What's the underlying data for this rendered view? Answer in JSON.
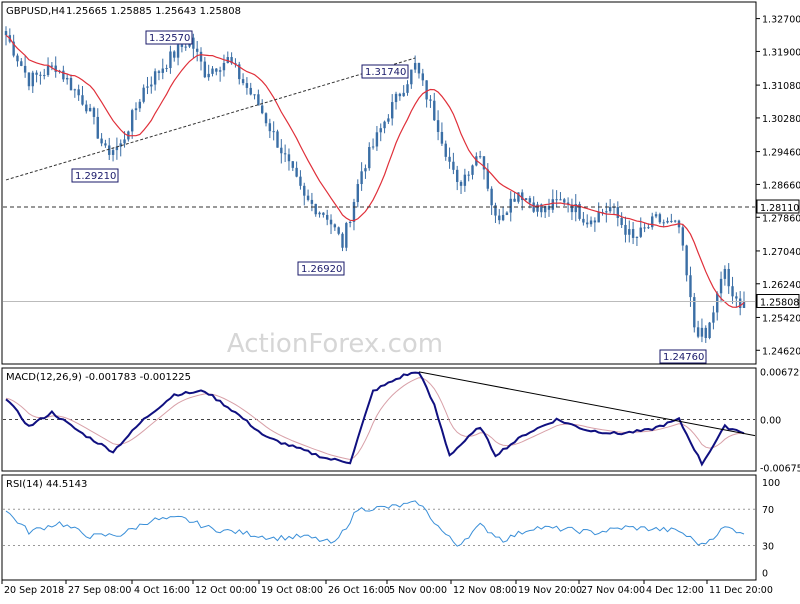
{
  "header": {
    "symbol": "GBPUSD,H4",
    "ohlc": "1.25665 1.25885 1.25643 1.25808"
  },
  "watermark": "ActionForex.com",
  "colors": {
    "candle": "#3a6ea5",
    "ma": "#e0303a",
    "macd_main": "#101080",
    "macd_signal": "#d8a0a8",
    "rsi": "#3a8fd8",
    "label_bg": "#ffffff",
    "label_border": "#1a1a6a"
  },
  "chart_data": [
    {
      "type": "candlestick",
      "title": "GBPUSD,H4",
      "ylim": [
        1.2431,
        1.3308
      ],
      "y_ticks": [
        "1.32700",
        "1.31900",
        "1.31080",
        "1.30280",
        "1.29460",
        "1.28660",
        "1.27860",
        "1.27040",
        "1.26240",
        "1.25420",
        "1.24620"
      ],
      "y_tick_values": [
        1.327,
        1.319,
        1.3108,
        1.3028,
        1.2946,
        1.2866,
        1.2786,
        1.2704,
        1.2624,
        1.2542,
        1.2462
      ],
      "x_ticks": [
        "20 Sep 2018",
        "27 Sep 08:00",
        "4 Oct 16:00",
        "12 Oct 00:00",
        "19 Oct 08:00",
        "26 Oct 16:00",
        "5 Nov 00:00",
        "12 Nov 08:00",
        "19 Nov 20:00",
        "27 Nov 04:00",
        "4 Dec 12:00",
        "11 Dec 20:00"
      ],
      "price_anchors": [
        {
          "t": 0,
          "p": 1.323
        },
        {
          "t": 6,
          "p": 1.312
        },
        {
          "t": 13,
          "p": 1.3155
        },
        {
          "t": 21,
          "p": 1.306
        },
        {
          "t": 26,
          "p": 1.2945
        },
        {
          "t": 30,
          "p": 1.296
        },
        {
          "t": 36,
          "p": 1.31
        },
        {
          "t": 43,
          "p": 1.3175
        },
        {
          "t": 48,
          "p": 1.322
        },
        {
          "t": 52,
          "p": 1.314
        },
        {
          "t": 58,
          "p": 1.317
        },
        {
          "t": 66,
          "p": 1.306
        },
        {
          "t": 72,
          "p": 1.295
        },
        {
          "t": 78,
          "p": 1.283
        },
        {
          "t": 84,
          "p": 1.279
        },
        {
          "t": 88,
          "p": 1.272
        },
        {
          "t": 93,
          "p": 1.29
        },
        {
          "t": 100,
          "p": 1.304
        },
        {
          "t": 107,
          "p": 1.3155
        },
        {
          "t": 113,
          "p": 1.301
        },
        {
          "t": 118,
          "p": 1.286
        },
        {
          "t": 124,
          "p": 1.295
        },
        {
          "t": 128,
          "p": 1.278
        },
        {
          "t": 134,
          "p": 1.285
        },
        {
          "t": 140,
          "p": 1.28
        },
        {
          "t": 146,
          "p": 1.283
        },
        {
          "t": 152,
          "p": 1.278
        },
        {
          "t": 158,
          "p": 1.281
        },
        {
          "t": 164,
          "p": 1.273
        },
        {
          "t": 170,
          "p": 1.278
        },
        {
          "t": 176,
          "p": 1.276
        },
        {
          "t": 180,
          "p": 1.252
        },
        {
          "t": 183,
          "p": 1.249
        },
        {
          "t": 188,
          "p": 1.266
        },
        {
          "t": 190,
          "p": 1.258
        },
        {
          "t": 193,
          "p": 1.2581
        }
      ],
      "ma_label": "",
      "annotations": [
        {
          "label": "1.32570",
          "price": 1.3257,
          "t": 44
        },
        {
          "label": "1.29210",
          "price": 1.2921,
          "t": 28
        },
        {
          "label": "1.31740",
          "price": 1.3174,
          "t": 107
        },
        {
          "label": "1.26920",
          "price": 1.2692,
          "t": 88
        },
        {
          "label": "1.24760",
          "price": 1.2476,
          "t": 182
        }
      ],
      "horizontal_line": {
        "price": 1.2811,
        "label": "1.28110"
      },
      "current_price": {
        "price": 1.25808,
        "label": "1.25808"
      },
      "trendline": {
        "from": {
          "t": 0,
          "p": 1.2877
        },
        "to": {
          "t": 107,
          "p": 1.3174
        }
      }
    },
    {
      "type": "line",
      "title": "MACD(12,26,9) -0.001783 -0.001225",
      "ylim": [
        -0.0071,
        0.0071
      ],
      "y_ticks": [
        "0.006729",
        "0.00",
        "-0.006758"
      ],
      "y_tick_values": [
        0.006729,
        0.0,
        -0.006758
      ],
      "macd_anchors": [
        {
          "t": 0,
          "v": 0.003
        },
        {
          "t": 6,
          "v": -0.001
        },
        {
          "t": 12,
          "v": 0.001
        },
        {
          "t": 20,
          "v": -0.002
        },
        {
          "t": 28,
          "v": -0.0045
        },
        {
          "t": 36,
          "v": 0.0
        },
        {
          "t": 44,
          "v": 0.0035
        },
        {
          "t": 52,
          "v": 0.004
        },
        {
          "t": 60,
          "v": 0.001
        },
        {
          "t": 68,
          "v": -0.0025
        },
        {
          "t": 76,
          "v": -0.004
        },
        {
          "t": 84,
          "v": -0.0055
        },
        {
          "t": 90,
          "v": -0.006
        },
        {
          "t": 96,
          "v": 0.004
        },
        {
          "t": 104,
          "v": 0.0062
        },
        {
          "t": 108,
          "v": 0.0067
        },
        {
          "t": 112,
          "v": 0.002
        },
        {
          "t": 116,
          "v": -0.005
        },
        {
          "t": 120,
          "v": -0.003
        },
        {
          "t": 124,
          "v": -0.001
        },
        {
          "t": 128,
          "v": -0.005
        },
        {
          "t": 136,
          "v": -0.002
        },
        {
          "t": 144,
          "v": 0.0
        },
        {
          "t": 152,
          "v": -0.0015
        },
        {
          "t": 160,
          "v": -0.002
        },
        {
          "t": 168,
          "v": -0.0015
        },
        {
          "t": 176,
          "v": 0.0
        },
        {
          "t": 182,
          "v": -0.0062
        },
        {
          "t": 188,
          "v": -0.001
        },
        {
          "t": 193,
          "v": -0.0018
        }
      ],
      "trendline": {
        "from": {
          "t": 108,
          "v": 0.0067
        },
        "to": {
          "t": 193,
          "v": -0.001
        }
      }
    },
    {
      "type": "line",
      "title": "RSI(14) 44.5143",
      "ylim": [
        0,
        100
      ],
      "y_ticks": [
        "100",
        "70",
        "30",
        "0"
      ],
      "y_tick_values": [
        100,
        70,
        30,
        0
      ],
      "rsi_anchors": [
        {
          "t": 0,
          "v": 68
        },
        {
          "t": 6,
          "v": 45
        },
        {
          "t": 14,
          "v": 55
        },
        {
          "t": 22,
          "v": 40
        },
        {
          "t": 30,
          "v": 42
        },
        {
          "t": 38,
          "v": 58
        },
        {
          "t": 46,
          "v": 60
        },
        {
          "t": 54,
          "v": 48
        },
        {
          "t": 62,
          "v": 44
        },
        {
          "t": 70,
          "v": 38
        },
        {
          "t": 78,
          "v": 40
        },
        {
          "t": 86,
          "v": 32
        },
        {
          "t": 92,
          "v": 70
        },
        {
          "t": 100,
          "v": 72
        },
        {
          "t": 108,
          "v": 77
        },
        {
          "t": 114,
          "v": 46
        },
        {
          "t": 118,
          "v": 30
        },
        {
          "t": 124,
          "v": 52
        },
        {
          "t": 130,
          "v": 36
        },
        {
          "t": 138,
          "v": 50
        },
        {
          "t": 146,
          "v": 48
        },
        {
          "t": 154,
          "v": 44
        },
        {
          "t": 162,
          "v": 50
        },
        {
          "t": 170,
          "v": 48
        },
        {
          "t": 176,
          "v": 46
        },
        {
          "t": 182,
          "v": 30
        },
        {
          "t": 188,
          "v": 50
        },
        {
          "t": 193,
          "v": 44.5
        }
      ],
      "levels": [
        70,
        30
      ]
    }
  ]
}
